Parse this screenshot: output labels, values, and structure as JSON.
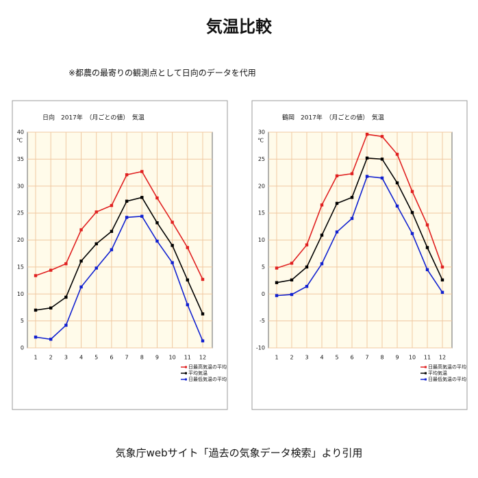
{
  "title": "気温比較",
  "note": "※都農の最寄りの観測点として日向のデータを代用",
  "source": "気象庁webサイト「過去の気象データ検索」より引用",
  "chart_data": [
    {
      "type": "line",
      "title": "日向　2017年　（月ごとの値）　気温",
      "y_label": "℃",
      "categories": [
        "1",
        "2",
        "3",
        "4",
        "5",
        "6",
        "7",
        "8",
        "9",
        "10",
        "11",
        "12"
      ],
      "ylim": [
        0,
        40
      ],
      "yticks": [
        0,
        5,
        10,
        15,
        20,
        25,
        30,
        35,
        40
      ],
      "grid": true,
      "series": [
        {
          "name": "日最高気温の平均",
          "color": "#e02020",
          "values": [
            13.4,
            14.4,
            15.6,
            21.9,
            25.2,
            26.4,
            32.1,
            32.7,
            27.8,
            23.3,
            18.6,
            12.7
          ]
        },
        {
          "name": "平均気温",
          "color": "#000000",
          "values": [
            7.0,
            7.4,
            9.4,
            16.1,
            19.3,
            21.6,
            27.2,
            27.9,
            23.2,
            19.0,
            12.6,
            6.3
          ]
        },
        {
          "name": "日最低気温の平均",
          "color": "#1020d0",
          "values": [
            2.0,
            1.6,
            4.2,
            11.3,
            14.8,
            18.2,
            24.2,
            24.4,
            19.8,
            15.8,
            8.0,
            1.3
          ]
        }
      ]
    },
    {
      "type": "line",
      "title": "鶴岡　2017年　（月ごとの値）　気温",
      "y_label": "℃",
      "categories": [
        "1",
        "2",
        "3",
        "4",
        "5",
        "6",
        "7",
        "8",
        "9",
        "10",
        "11",
        "12"
      ],
      "ylim": [
        -10,
        30
      ],
      "yticks": [
        -10,
        -5,
        0,
        5,
        10,
        15,
        20,
        25,
        30
      ],
      "grid": true,
      "series": [
        {
          "name": "日最高気温の平均",
          "color": "#e02020",
          "values": [
            4.8,
            5.7,
            9.1,
            16.5,
            21.9,
            22.3,
            29.6,
            29.2,
            25.9,
            19.0,
            12.8,
            5.0
          ]
        },
        {
          "name": "平均気温",
          "color": "#000000",
          "values": [
            2.1,
            2.6,
            5.0,
            10.9,
            16.8,
            17.9,
            25.2,
            25.0,
            20.6,
            15.1,
            8.6,
            2.6
          ]
        },
        {
          "name": "日最低気温の平均",
          "color": "#1020d0",
          "values": [
            -0.3,
            -0.1,
            1.4,
            5.6,
            11.5,
            14.0,
            21.8,
            21.5,
            16.3,
            11.2,
            4.5,
            0.3
          ]
        }
      ]
    }
  ]
}
